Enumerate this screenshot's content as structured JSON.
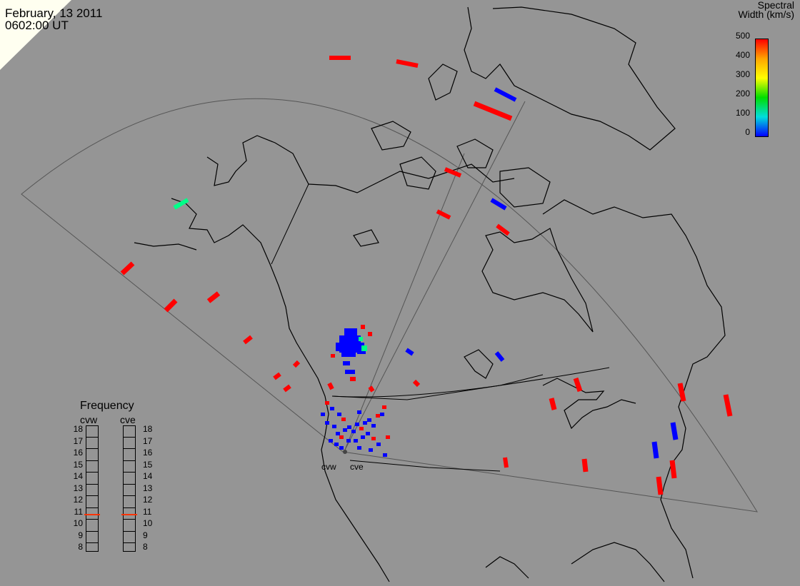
{
  "header": {
    "date": "February, 13 2011",
    "time": "0602:00 UT"
  },
  "colorbar": {
    "title_line1": "Spectral",
    "title_line2": "Width (km/s)",
    "ticks": [
      "500",
      "400",
      "300",
      "200",
      "100",
      "0"
    ],
    "colors": [
      "#ff0000",
      "#ffa500",
      "#ffff00",
      "#00dd00",
      "#00dddd",
      "#0000ff"
    ]
  },
  "frequency_panel": {
    "title": "Frequency",
    "radars": [
      {
        "name": "cvw",
        "value_mhz": 10.8
      },
      {
        "name": "cve",
        "value_mhz": 10.8
      }
    ],
    "scale": [
      "18",
      "17",
      "16",
      "15",
      "14",
      "13",
      "12",
      "11",
      "10",
      "9",
      "8"
    ],
    "marker_color": "#ff3300"
  },
  "radar_labels": [
    "cvw",
    "cve"
  ],
  "data_colors": {
    "red": "#ff0000",
    "blue": "#0000ff",
    "green": "#00ff88"
  }
}
